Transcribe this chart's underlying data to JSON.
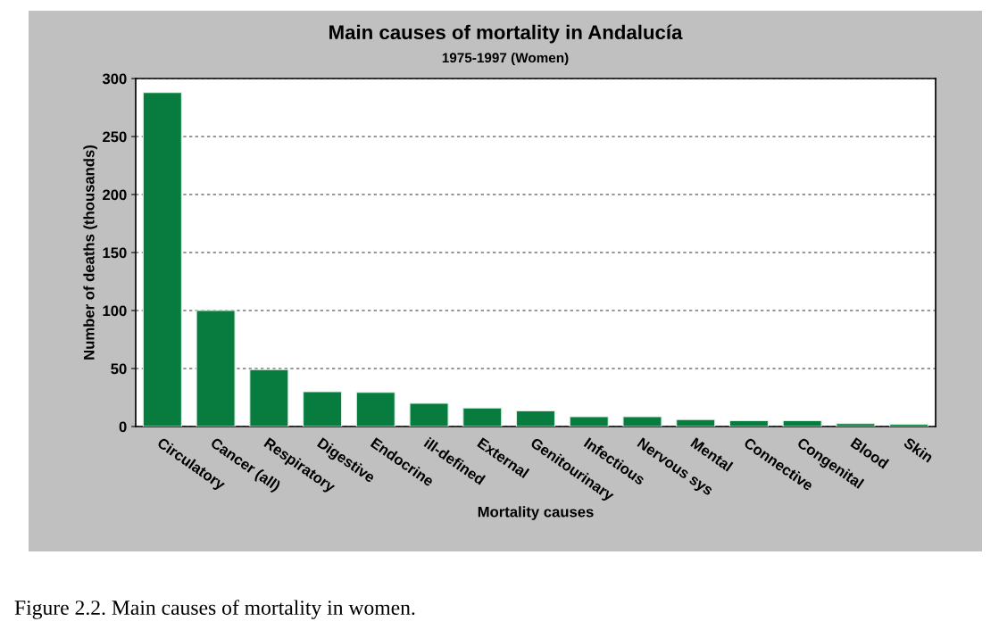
{
  "chart_data": {
    "type": "bar",
    "title": "Main causes of mortality in Andalucía",
    "subtitle": "1975-1997 (Women)",
    "xlabel": "Mortality causes",
    "ylabel": "Number of deaths (thousands)",
    "categories": [
      "Circulatory",
      "Cancer (all)",
      "Respiratory",
      "Digestive",
      "Endocrine",
      "ill-defined",
      "External",
      "Genitourinary",
      "Infectious",
      "Nervous sys",
      "Mental",
      "Connective",
      "Congenital",
      "Blood",
      "Skin"
    ],
    "values": [
      288,
      100,
      49,
      30,
      29.5,
      20,
      16,
      13.5,
      8.5,
      8.5,
      6,
      5,
      5,
      2.5,
      2
    ],
    "color": "#077c3e",
    "ylim": [
      0,
      300
    ],
    "yticks": [
      0,
      50,
      100,
      150,
      200,
      250,
      300
    ],
    "grid": "y",
    "line_style": "dashed",
    "legend": false,
    "annotations": [
      "Figure 2.2. Main causes of mortality in women."
    ]
  }
}
